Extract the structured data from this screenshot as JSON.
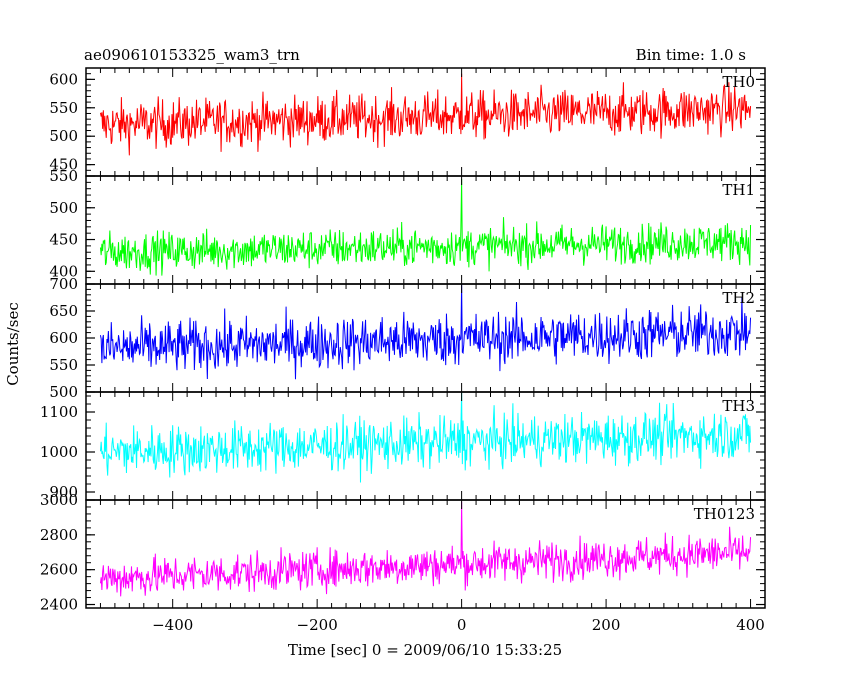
{
  "header": {
    "title": "ae090610153325_wam3_trn",
    "bin_time": "Bin time: 1.0 s"
  },
  "axes": {
    "ylabel": "Counts/sec",
    "xlabel": "Time [sec] 0 = 2009/06/10 15:33:25",
    "xlim": [
      -520,
      420
    ],
    "xticks": [
      -400,
      -200,
      0,
      200,
      400
    ],
    "xtick_labels": [
      "−400",
      "−200",
      "0",
      "200",
      "400"
    ]
  },
  "chart_data": {
    "type": "line",
    "x_range": [
      -500,
      400
    ],
    "bin_size_s": 1.0,
    "panels": [
      {
        "name": "TH0",
        "color": "#ff0000",
        "ylim": [
          430,
          620
        ],
        "yticks": [
          450,
          500,
          550,
          600
        ],
        "baseline_start": 520,
        "baseline_end": 548,
        "noise_amplitude": 30,
        "spike": {
          "x": 0,
          "peak": 610
        }
      },
      {
        "name": "TH1",
        "color": "#00ff00",
        "ylim": [
          380,
          550
        ],
        "yticks": [
          400,
          450,
          500,
          550
        ],
        "baseline_start": 430,
        "baseline_end": 447,
        "noise_amplitude": 22,
        "spike": {
          "x": 0,
          "peak": 545
        }
      },
      {
        "name": "TH2",
        "color": "#0000ff",
        "ylim": [
          500,
          700
        ],
        "yticks": [
          500,
          550,
          600,
          650,
          700
        ],
        "baseline_start": 580,
        "baseline_end": 612,
        "noise_amplitude": 35,
        "spike": {
          "x": 0,
          "peak": 700
        }
      },
      {
        "name": "TH3",
        "color": "#00ffff",
        "ylim": [
          880,
          1150
        ],
        "yticks": [
          900,
          1000,
          1100
        ],
        "baseline_start": 1000,
        "baseline_end": 1045,
        "noise_amplitude": 45,
        "spike": {
          "x": 0,
          "peak": 1150
        }
      },
      {
        "name": "TH0123",
        "color": "#ff00ff",
        "ylim": [
          2380,
          3000
        ],
        "yticks": [
          2400,
          2600,
          2800,
          3000
        ],
        "baseline_start": 2550,
        "baseline_end": 2700,
        "noise_amplitude": 80,
        "spike": {
          "x": 0,
          "peak": 2990
        }
      }
    ]
  }
}
